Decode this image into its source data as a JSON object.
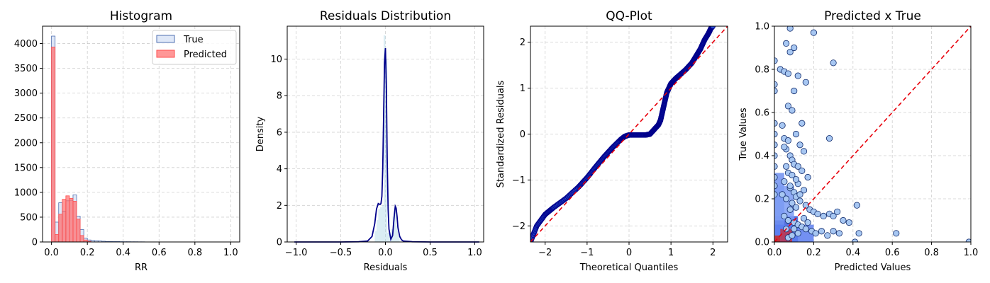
{
  "chart_data": [
    {
      "type": "bar",
      "title": "Histogram",
      "xlabel": "RR",
      "ylabel": "",
      "xlim": [
        -0.05,
        1.05
      ],
      "ylim": [
        0,
        4350
      ],
      "xticks": [
        "0.0",
        "0.2",
        "0.4",
        "0.6",
        "0.8",
        "1.0"
      ],
      "yticks": [
        "0",
        "500",
        "1000",
        "1500",
        "2000",
        "2500",
        "3000",
        "3500",
        "4000"
      ],
      "grid": true,
      "legend": {
        "position": "top-right",
        "entries": [
          "True",
          "Predicted"
        ]
      },
      "bin_width": 0.02,
      "series": [
        {
          "name": "True",
          "color": "#dbe6f7",
          "edge": "#4f6fb0",
          "bins": [
            0.0,
            0.02,
            0.04,
            0.06,
            0.08,
            0.1,
            0.12,
            0.14,
            0.16,
            0.18,
            0.2,
            0.22,
            0.24,
            0.26,
            0.28,
            0.3,
            0.32,
            0.34,
            0.36,
            0.38,
            0.4,
            0.42,
            0.44,
            0.46,
            0.48,
            0.5
          ],
          "values": [
            4150,
            400,
            790,
            620,
            830,
            840,
            950,
            520,
            250,
            80,
            40,
            30,
            25,
            20,
            15,
            10,
            10,
            8,
            8,
            6,
            5,
            5,
            4,
            4,
            3,
            3
          ]
        },
        {
          "name": "Predicted",
          "color": "#ff6b6b",
          "edge": "#ff4d4d",
          "bins": [
            0.0,
            0.02,
            0.04,
            0.06,
            0.08,
            0.1,
            0.12,
            0.14,
            0.16,
            0.18,
            0.2
          ],
          "values": [
            3930,
            150,
            560,
            860,
            930,
            880,
            820,
            460,
            130,
            40,
            15
          ]
        }
      ]
    },
    {
      "type": "area",
      "title": "Residuals Distribution",
      "xlabel": "Residuals",
      "ylabel": "Density",
      "xlim": [
        -1.1,
        1.1
      ],
      "ylim": [
        0,
        11.8
      ],
      "xticks": [
        "−1.0",
        "−0.5",
        "0.0",
        "0.5",
        "1.0"
      ],
      "yticks": [
        "0",
        "2",
        "4",
        "6",
        "8",
        "10"
      ],
      "grid": true,
      "hist": {
        "bins": [
          -0.12,
          -0.1,
          -0.08,
          -0.06,
          -0.04,
          -0.02,
          0.0,
          0.02,
          0.04,
          0.06,
          0.08,
          0.1,
          0.12,
          0.14
        ],
        "values": [
          0.6,
          1.2,
          1.8,
          1.9,
          2.0,
          11.3,
          10.0,
          0.5,
          0.4,
          0.7,
          1.4,
          1.9,
          0.9,
          0.3
        ]
      },
      "kde": {
        "x": [
          -1.02,
          -0.8,
          -0.5,
          -0.3,
          -0.2,
          -0.15,
          -0.12,
          -0.1,
          -0.08,
          -0.06,
          -0.05,
          -0.04,
          -0.03,
          -0.02,
          -0.01,
          0.0,
          0.01,
          0.02,
          0.03,
          0.04,
          0.06,
          0.08,
          0.1,
          0.11,
          0.12,
          0.13,
          0.14,
          0.16,
          0.18,
          0.2,
          0.3,
          0.5,
          0.8,
          1.05
        ],
        "y": [
          0.0,
          0.0,
          0.0,
          0.01,
          0.05,
          0.3,
          1.0,
          1.8,
          2.1,
          2.05,
          2.1,
          2.5,
          4.0,
          7.0,
          9.8,
          10.6,
          8.5,
          4.5,
          1.8,
          0.7,
          0.15,
          0.35,
          1.5,
          1.95,
          1.85,
          1.4,
          0.8,
          0.3,
          0.12,
          0.05,
          0.01,
          0.0,
          0.0,
          0.0
        ]
      }
    },
    {
      "type": "scatter",
      "title": "QQ-Plot",
      "xlabel": "Theoretical Quantiles",
      "ylabel": "Standardized Residuals",
      "xlim": [
        -2.35,
        2.35
      ],
      "ylim": [
        -2.35,
        2.35
      ],
      "xticks": [
        "−2",
        "−1",
        "0",
        "1",
        "2"
      ],
      "yticks": [
        "−2",
        "−1",
        "0",
        "1",
        "2"
      ],
      "grid": true,
      "reference_line": "y = x",
      "points": {
        "x": [
          -2.35,
          -2.2,
          -2.0,
          -1.8,
          -1.5,
          -1.2,
          -1.0,
          -0.8,
          -0.6,
          -0.4,
          -0.2,
          -0.1,
          0.0,
          0.2,
          0.4,
          0.5,
          0.6,
          0.7,
          0.75,
          0.8,
          0.85,
          0.9,
          0.95,
          1.0,
          1.1,
          1.2,
          1.35,
          1.5,
          1.6,
          1.7,
          1.8,
          1.9,
          1.95,
          2.0
        ],
        "y": [
          -2.35,
          -2.0,
          -1.75,
          -1.6,
          -1.4,
          -1.15,
          -0.95,
          -0.72,
          -0.5,
          -0.3,
          -0.12,
          -0.05,
          -0.02,
          -0.02,
          -0.02,
          0.0,
          0.1,
          0.2,
          0.3,
          0.5,
          0.7,
          0.9,
          1.0,
          1.1,
          1.2,
          1.28,
          1.4,
          1.55,
          1.7,
          1.85,
          2.05,
          2.2,
          2.3,
          2.35
        ]
      }
    },
    {
      "type": "scatter",
      "title": "Predicted x True",
      "xlabel": "Predicted Values",
      "ylabel": "True Values",
      "xlim": [
        0,
        1
      ],
      "ylim": [
        0,
        1
      ],
      "xticks": [
        "0.0",
        "0.2",
        "0.4",
        "0.6",
        "0.8",
        "1.0"
      ],
      "yticks": [
        "0.0",
        "0.2",
        "0.4",
        "0.6",
        "0.8",
        "1.0"
      ],
      "grid": true,
      "reference_line": "y = x",
      "points": {
        "x": [
          0.03,
          0.05,
          0.07,
          0.08,
          0.1,
          0.12,
          0.14,
          0.16,
          0.2,
          0.3,
          0.08,
          0.06,
          0.1,
          0.04,
          0.07,
          0.09,
          0.05,
          0.11,
          0.13,
          0.15,
          0.06,
          0.08,
          0.09,
          0.1,
          0.12,
          0.14,
          0.17,
          0.07,
          0.05,
          0.12,
          0.08,
          0.1,
          0.15,
          0.04,
          0.06,
          0.11,
          0.13,
          0.09,
          0.16,
          0.18,
          0.2,
          0.22,
          0.25,
          0.28,
          0.3,
          0.32,
          0.35,
          0.38,
          0.42,
          0.43,
          0.41,
          0.62,
          0.99,
          0.28,
          0.06,
          0.09,
          0.11,
          0.08,
          0.13,
          0.05,
          0.07,
          0.1,
          0.12,
          0.14,
          0.16,
          0.19,
          0.21,
          0.24,
          0.27,
          0.3,
          0.33,
          0.07,
          0.09,
          0.06,
          0.1,
          0.12,
          0.08,
          0.11,
          0.15,
          0.17,
          0.05,
          0.07
        ],
        "y": [
          0.8,
          0.79,
          0.78,
          0.99,
          0.7,
          0.77,
          0.55,
          0.74,
          0.97,
          0.83,
          0.88,
          0.92,
          0.9,
          0.54,
          0.63,
          0.61,
          0.48,
          0.5,
          0.45,
          0.42,
          0.43,
          0.4,
          0.38,
          0.36,
          0.35,
          0.33,
          0.3,
          0.32,
          0.28,
          0.27,
          0.25,
          0.23,
          0.24,
          0.22,
          0.2,
          0.21,
          0.19,
          0.18,
          0.17,
          0.15,
          0.14,
          0.13,
          0.12,
          0.13,
          0.12,
          0.14,
          0.1,
          0.09,
          0.17,
          0.04,
          0.0,
          0.04,
          0.0,
          0.48,
          0.35,
          0.31,
          0.29,
          0.26,
          0.22,
          0.12,
          0.1,
          0.09,
          0.08,
          0.07,
          0.06,
          0.05,
          0.04,
          0.05,
          0.03,
          0.05,
          0.04,
          0.02,
          0.03,
          0.06,
          0.06,
          0.04,
          0.15,
          0.16,
          0.11,
          0.09,
          0.44,
          0.47
        ]
      }
    }
  ]
}
